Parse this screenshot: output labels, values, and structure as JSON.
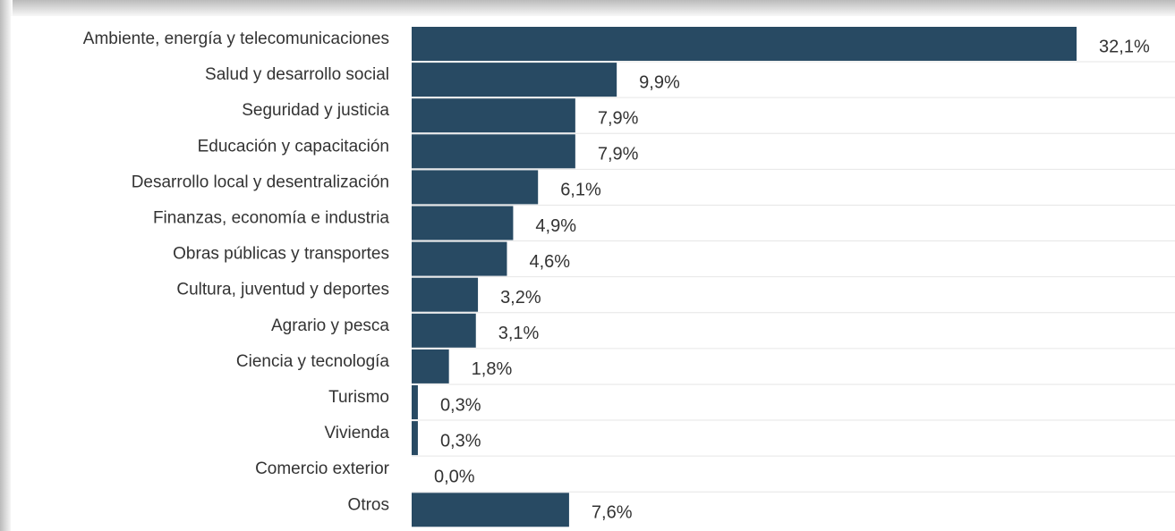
{
  "chart_data": {
    "type": "bar",
    "orientation": "horizontal",
    "categories": [
      "Ambiente, energía y telecomunicaciones",
      "Salud y desarrollo social",
      "Seguridad y justicia",
      "Educación y capacitación",
      "Desarrollo local y desentralización",
      "Finanzas, economía e industria",
      "Obras públicas y transportes",
      "Cultura, juventud y deportes",
      "Agrario y pesca",
      "Ciencia  y tecnología",
      "Turismo",
      "Vivienda",
      "Comercio exterior",
      "Otros"
    ],
    "values": [
      32.1,
      9.9,
      7.9,
      7.9,
      6.1,
      4.9,
      4.6,
      3.2,
      3.1,
      1.8,
      0.3,
      0.3,
      0.0,
      7.6
    ],
    "value_labels": [
      "32,1%",
      "9,9%",
      "7,9%",
      "7,9%",
      "6,1%",
      "4,9%",
      "4,6%",
      "3,2%",
      "3,1%",
      "1,8%",
      "0,3%",
      "0,3%",
      "0,0%",
      "7,6%"
    ],
    "color": "#284a63",
    "xlim": [
      0,
      34
    ]
  }
}
